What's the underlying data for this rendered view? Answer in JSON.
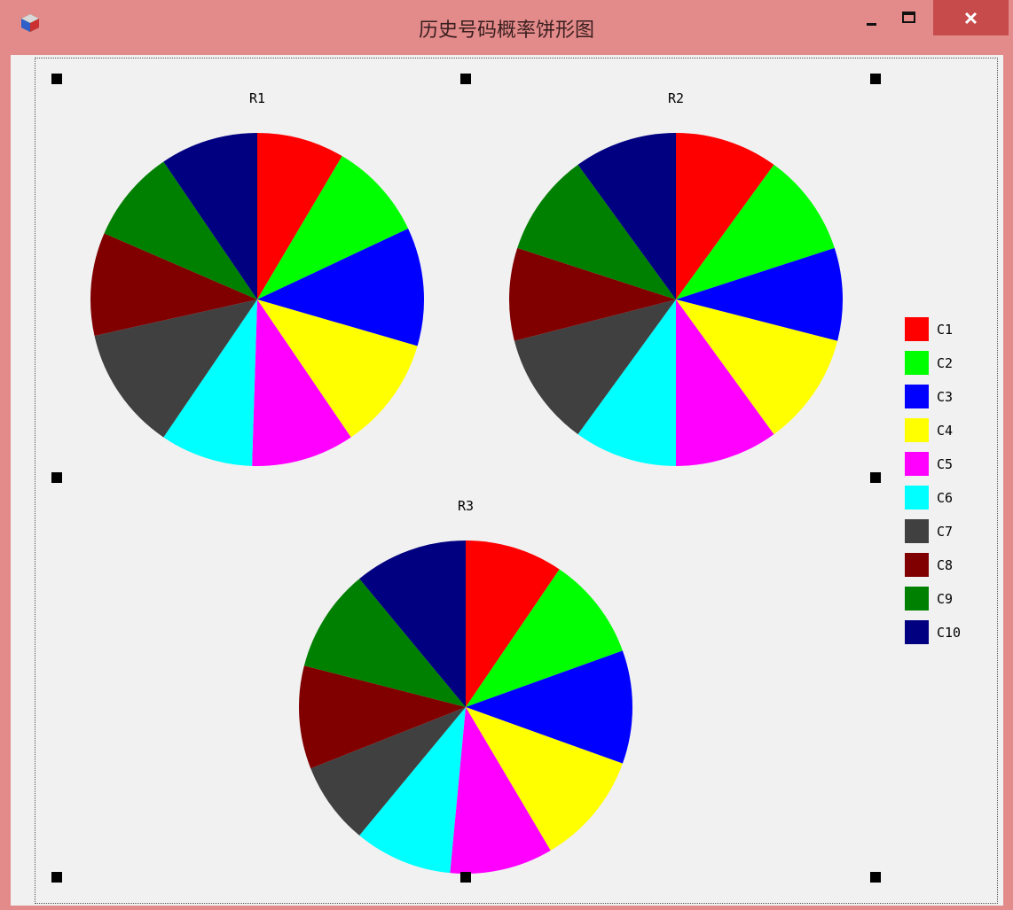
{
  "window": {
    "title": "历史号码概率饼形图",
    "icon": "app-cube-icon",
    "controls": {
      "minimize": "minimize-icon",
      "maximize": "maximize-icon",
      "close": "close-icon"
    }
  },
  "chart_data": [
    {
      "type": "pie",
      "title": "R1",
      "categories": [
        "C1",
        "C2",
        "C3",
        "C4",
        "C5",
        "C6",
        "C7",
        "C8",
        "C9",
        "C10"
      ],
      "values": [
        8.5,
        9.5,
        11.5,
        11,
        10,
        9,
        12,
        10,
        9,
        9.5
      ],
      "start_angle": "12 o'clock",
      "direction": "clockwise"
    },
    {
      "type": "pie",
      "title": "R2",
      "categories": [
        "C1",
        "C2",
        "C3",
        "C4",
        "C5",
        "C6",
        "C7",
        "C8",
        "C9",
        "C10"
      ],
      "values": [
        10,
        10,
        9,
        11,
        10,
        10,
        11,
        9,
        10,
        10
      ],
      "start_angle": "12 o'clock",
      "direction": "clockwise"
    },
    {
      "type": "pie",
      "title": "R3",
      "categories": [
        "C1",
        "C2",
        "C3",
        "C4",
        "C5",
        "C6",
        "C7",
        "C8",
        "C9",
        "C10"
      ],
      "values": [
        9.5,
        10,
        11,
        11,
        10,
        9.5,
        8,
        10,
        10,
        11
      ],
      "start_angle": "12 o'clock",
      "direction": "clockwise"
    }
  ],
  "legend": {
    "placement": "right",
    "items": [
      {
        "label": "C1",
        "color": "#ff0000"
      },
      {
        "label": "C2",
        "color": "#00ff00"
      },
      {
        "label": "C3",
        "color": "#0000ff"
      },
      {
        "label": "C4",
        "color": "#ffff00"
      },
      {
        "label": "C5",
        "color": "#ff00ff"
      },
      {
        "label": "C6",
        "color": "#00ffff"
      },
      {
        "label": "C7",
        "color": "#404040"
      },
      {
        "label": "C8",
        "color": "#800000"
      },
      {
        "label": "C9",
        "color": "#008000"
      },
      {
        "label": "C10",
        "color": "#000080"
      }
    ]
  }
}
